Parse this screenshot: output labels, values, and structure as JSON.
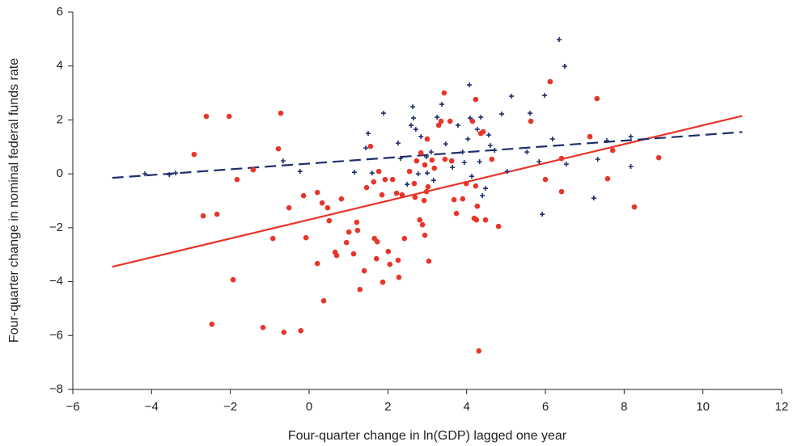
{
  "chart_data": {
    "type": "scatter",
    "xlabel": "Four-quarter change in ln(GDP) lagged one year",
    "ylabel": "Four-quarter change in nominal federal funds rate",
    "xlim": [
      -6,
      12
    ],
    "ylim": [
      -8,
      6
    ],
    "xticks": [
      {
        "value": -6,
        "label": "−6"
      },
      {
        "value": -4,
        "label": "−4"
      },
      {
        "value": -2,
        "label": "−2"
      },
      0,
      2,
      4,
      6,
      8,
      10,
      12
    ],
    "yticks": [
      {
        "value": -8,
        "label": "−8"
      },
      {
        "value": -6,
        "label": "−6"
      },
      {
        "value": -4,
        "label": "−4"
      },
      {
        "value": -2,
        "label": "−2"
      },
      0,
      2,
      4,
      6
    ],
    "series": [
      {
        "color": "#e8352a",
        "marker": "dot",
        "x": [
          -2.92,
          -2.69,
          -2.34,
          -2.61,
          -2.47,
          -2.03,
          -1.93,
          -1.83,
          -1.42,
          -1.17,
          -0.92,
          -0.78,
          -0.72,
          -0.64,
          -0.51,
          -0.21,
          -0.14,
          -0.08,
          0.21,
          0.21,
          0.33,
          0.37,
          0.47,
          0.51,
          0.66,
          0.7,
          0.82,
          0.95,
          1.01,
          1.13,
          1.21,
          1.23,
          1.29,
          1.4,
          1.46,
          1.56,
          1.64,
          1.66,
          1.71,
          1.73,
          1.77,
          1.85,
          1.87,
          1.93,
          2.01,
          2.05,
          2.12,
          2.22,
          2.26,
          2.28,
          2.36,
          2.42,
          2.55,
          2.67,
          2.69,
          2.73,
          2.81,
          2.84,
          2.88,
          2.92,
          2.94,
          2.94,
          2.98,
          3.0,
          3.02,
          3.04,
          3.12,
          3.18,
          3.29,
          3.35,
          3.43,
          3.45,
          3.58,
          3.62,
          3.68,
          3.74,
          3.9,
          3.99,
          4.15,
          4.19,
          4.23,
          4.25,
          4.27,
          4.31,
          4.36,
          4.42,
          4.48,
          4.64,
          4.81,
          5.63,
          6.0,
          6.12,
          6.41,
          6.41,
          7.13,
          7.31,
          7.58,
          7.71,
          8.26,
          8.88,
          4.23
        ],
        "values": [
          0.72,
          -1.56,
          -1.5,
          2.13,
          -5.58,
          2.13,
          -3.93,
          -0.21,
          0.15,
          -5.7,
          -2.4,
          0.93,
          2.25,
          -5.88,
          -1.26,
          -5.82,
          -0.81,
          -2.37,
          -0.69,
          -3.33,
          -1.08,
          -4.71,
          -1.26,
          -1.74,
          -2.91,
          -3.03,
          -0.93,
          -2.55,
          -2.16,
          -2.97,
          -1.8,
          -2.1,
          -4.29,
          -3.6,
          -0.51,
          1.02,
          -0.3,
          -2.4,
          -3.15,
          -2.52,
          0.09,
          -0.78,
          -4.02,
          -0.21,
          -2.88,
          -3.36,
          -0.21,
          -0.72,
          -3.21,
          -3.84,
          -0.78,
          -2.4,
          0.09,
          -0.36,
          -0.87,
          0.48,
          -1.71,
          0.78,
          -1.89,
          -0.99,
          -2.28,
          0.33,
          -0.66,
          1.29,
          -0.48,
          -3.24,
          0.51,
          0.21,
          1.8,
          1.95,
          3.0,
          0.54,
          1.95,
          0.48,
          -0.96,
          -1.47,
          -0.93,
          -0.36,
          1.95,
          -1.65,
          2.76,
          -1.71,
          -1.2,
          -6.57,
          1.5,
          1.56,
          -1.71,
          0.54,
          -1.95,
          1.95,
          -0.21,
          3.42,
          -0.66,
          0.57,
          1.38,
          2.79,
          -0.18,
          0.87,
          -1.23,
          0.6,
          -0.45
        ]
      },
      {
        "color": "#1f2f6b",
        "marker": "plus",
        "x": [
          -4.17,
          -3.55,
          -3.39,
          -0.66,
          -0.23,
          1.15,
          1.44,
          1.5,
          1.6,
          1.89,
          2.26,
          2.32,
          2.49,
          2.59,
          2.63,
          2.65,
          2.71,
          2.77,
          2.84,
          2.98,
          3.0,
          3.1,
          3.16,
          3.25,
          3.37,
          3.47,
          3.64,
          3.78,
          3.9,
          3.94,
          4.03,
          4.07,
          4.09,
          4.13,
          4.27,
          4.36,
          4.4,
          4.48,
          4.56,
          4.6,
          4.71,
          4.89,
          5.03,
          5.14,
          5.53,
          5.61,
          5.84,
          5.92,
          5.98,
          6.18,
          6.35,
          6.49,
          6.53,
          7.23,
          7.33,
          7.56,
          8.17,
          8.17,
          4.33
        ],
        "values": [
          0,
          -0.03,
          0.03,
          0.48,
          0.09,
          0.06,
          0.96,
          1.5,
          0.03,
          2.25,
          1.14,
          0.57,
          -0.39,
          1.8,
          2.49,
          2.07,
          1.65,
          0,
          1.38,
          0.63,
          0.03,
          0.81,
          -0.24,
          2.1,
          2.58,
          1.11,
          0.24,
          1.8,
          0.81,
          0.42,
          1.29,
          3.3,
          2.07,
          -0.09,
          1.65,
          2.1,
          -0.81,
          -0.54,
          1.44,
          1.05,
          0.87,
          2.22,
          0.09,
          2.88,
          0.81,
          2.25,
          0.45,
          -1.5,
          2.91,
          1.29,
          4.98,
          3.99,
          0.36,
          -0.9,
          0.54,
          1.23,
          1.38,
          0.27,
          0.45
        ]
      }
    ],
    "fit_lines": [
      {
        "color": "#e8352a",
        "dashed": false,
        "x": [
          -5,
          11
        ],
        "y": [
          -3.45,
          2.15
        ]
      },
      {
        "color": "#1f2f6b",
        "dashed": true,
        "x": [
          -5,
          11
        ],
        "y": [
          -0.15,
          1.55
        ]
      }
    ]
  }
}
